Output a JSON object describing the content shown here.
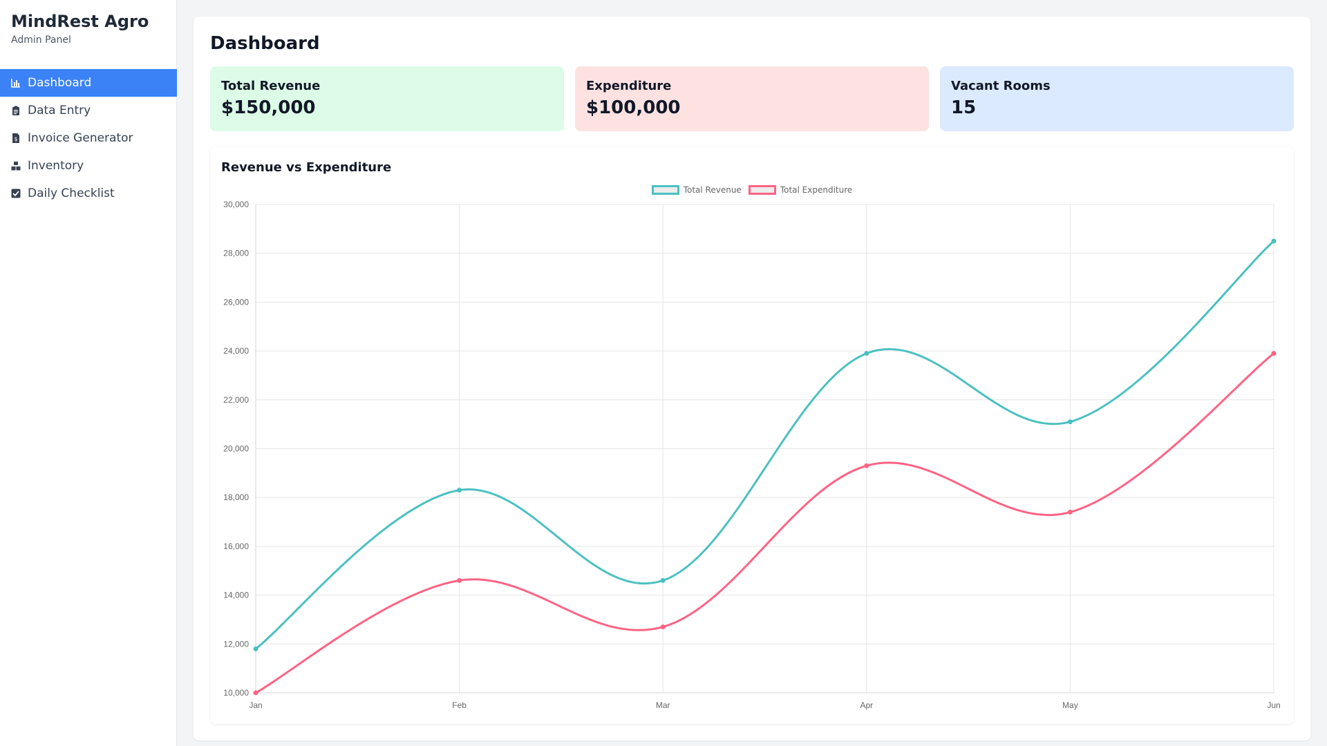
{
  "brand": {
    "title": "MindRest Agro",
    "subtitle": "Admin Panel"
  },
  "nav": [
    {
      "label": "Dashboard",
      "icon": "bar-chart-icon",
      "active": true
    },
    {
      "label": "Data Entry",
      "icon": "clipboard-icon",
      "active": false
    },
    {
      "label": "Invoice Generator",
      "icon": "invoice-icon",
      "active": false
    },
    {
      "label": "Inventory",
      "icon": "boxes-icon",
      "active": false
    },
    {
      "label": "Daily Checklist",
      "icon": "checkbox-icon",
      "active": false
    }
  ],
  "page": {
    "title": "Dashboard"
  },
  "stats": [
    {
      "label": "Total Revenue",
      "value": "$150,000",
      "color": "#dcfce7"
    },
    {
      "label": "Expenditure",
      "value": "$100,000",
      "color": "#fee2e2"
    },
    {
      "label": "Vacant Rooms",
      "value": "15",
      "color": "#dbeafe"
    }
  ],
  "colors": {
    "accent": "#3b82f6",
    "revenue": "#4bc0c0",
    "expenditure": "#ff6384"
  },
  "chart_data": {
    "type": "line",
    "title": "Revenue vs Expenditure",
    "categories": [
      "Jan",
      "Feb",
      "Mar",
      "Apr",
      "May",
      "Jun"
    ],
    "series": [
      {
        "name": "Total Revenue",
        "color": "#4bc0c0",
        "values": [
          11800,
          18300,
          14600,
          23900,
          21100,
          28500
        ]
      },
      {
        "name": "Total Expenditure",
        "color": "#ff6384",
        "values": [
          10000,
          14600,
          12700,
          19300,
          17400,
          23900
        ]
      }
    ],
    "ylim": [
      10000,
      30000
    ],
    "yticks": [
      "10,000",
      "12,000",
      "14,000",
      "16,000",
      "18,000",
      "20,000",
      "22,000",
      "24,000",
      "26,000",
      "28,000",
      "30,000"
    ],
    "grid": true,
    "legend": "top-center"
  }
}
